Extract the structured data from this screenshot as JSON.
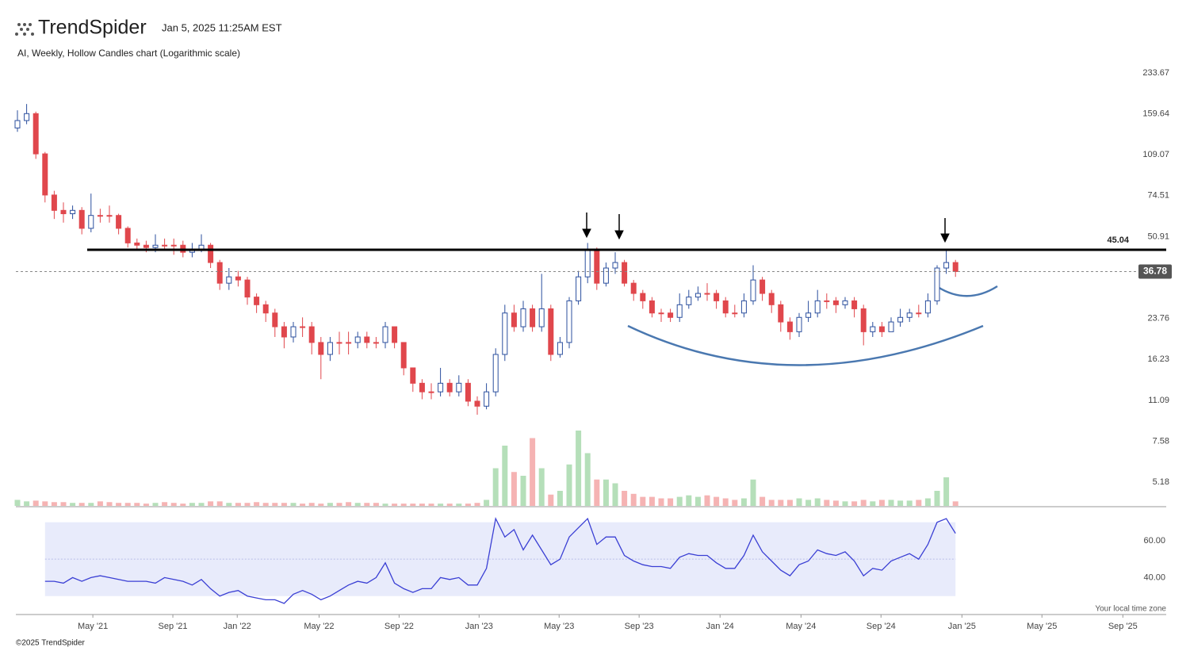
{
  "header": {
    "brand": "TrendSpider",
    "timestamp": "Jan 5, 2025 11:25AM EST",
    "subtitle": "AI, Weekly, Hollow Candles chart (Logarithmic scale)"
  },
  "footer": {
    "copyright": "©2025 TrendSpider",
    "timezone": "Your local time zone"
  },
  "chart_data": [
    {
      "type": "candlestick",
      "log_scale": true,
      "up_color": "#2b4f9e",
      "down_color": "#e0474c",
      "categories": [
        null,
        null,
        null,
        null,
        null,
        null,
        null,
        null,
        null,
        null,
        null,
        null,
        null,
        null,
        null,
        null,
        null,
        null,
        null,
        null,
        null,
        null,
        null,
        null,
        null,
        null,
        null,
        null,
        null,
        null,
        null,
        null,
        null,
        null,
        null,
        null,
        null,
        null,
        null,
        null,
        null,
        null,
        null,
        null,
        null,
        null,
        null,
        null,
        null,
        null,
        null,
        null,
        null,
        null,
        null,
        null,
        null,
        null,
        null,
        null,
        null,
        null,
        null,
        null,
        null,
        null,
        null,
        null,
        null,
        null,
        null,
        null,
        null,
        null,
        null,
        null,
        null,
        null,
        null,
        null,
        null,
        null,
        null,
        null,
        null,
        null,
        null,
        null,
        null,
        null,
        null,
        null,
        null,
        null,
        null,
        null,
        null,
        null,
        null,
        null,
        null,
        null,
        null
      ],
      "open": [
        140,
        150,
        160,
        110,
        75,
        65,
        63,
        65,
        55,
        62,
        62,
        62,
        55,
        48,
        47,
        46,
        47,
        47,
        47,
        44,
        45,
        47,
        40,
        33,
        35,
        34,
        29,
        27,
        25,
        22,
        20,
        22,
        22,
        19,
        17,
        19,
        19,
        19,
        20,
        19,
        19,
        22,
        19,
        15,
        13,
        12,
        12,
        13,
        12,
        13,
        11,
        10.5,
        12,
        17,
        25,
        22,
        26,
        22,
        26,
        17,
        19,
        28,
        35,
        45,
        33,
        38,
        40,
        33,
        30,
        28,
        25,
        25,
        24,
        27,
        29,
        30,
        30,
        28,
        25,
        25,
        28,
        34,
        30,
        27,
        23,
        21,
        24,
        25,
        28,
        28,
        27,
        28,
        26,
        21,
        22,
        21,
        23,
        24,
        25,
        25,
        28,
        38,
        40
      ],
      "high": [
        165,
        175,
        163,
        112,
        78,
        70,
        68,
        67,
        76,
        66,
        68,
        63,
        56,
        50,
        49,
        52,
        50,
        50,
        49,
        48,
        52,
        48,
        41,
        38,
        37,
        35,
        30,
        28,
        26,
        23,
        23,
        24,
        23,
        20,
        20,
        21,
        21,
        21,
        21,
        20,
        23,
        22,
        19,
        15,
        13.5,
        13,
        15,
        13.5,
        14,
        13.5,
        11.5,
        13,
        18,
        27,
        27,
        28,
        27,
        36,
        27,
        20,
        29,
        37,
        48,
        46,
        40,
        44,
        41,
        34,
        31,
        29,
        26,
        26,
        30,
        31,
        32,
        33,
        31,
        29,
        27,
        30,
        39,
        35,
        31,
        28,
        24,
        25,
        28,
        31,
        30,
        29,
        29,
        29,
        27,
        23,
        23,
        24,
        26,
        26,
        27,
        30,
        39,
        45,
        41
      ],
      "low": [
        135,
        145,
        105,
        70,
        60,
        58,
        60,
        52,
        53,
        58,
        58,
        52,
        46,
        45,
        44,
        44,
        45,
        43,
        42,
        42,
        44,
        38,
        31,
        31,
        32,
        27,
        25,
        23,
        20,
        18,
        19,
        20,
        17,
        13.5,
        16,
        17,
        17,
        18,
        18,
        18,
        18,
        18,
        14,
        12,
        11.2,
        11.2,
        11.5,
        11.5,
        11.5,
        10.5,
        9.7,
        10.2,
        11.5,
        16,
        21,
        21,
        21,
        21,
        16,
        16.5,
        18,
        27,
        33,
        31,
        32,
        36,
        32,
        28,
        26,
        24,
        23,
        23,
        23,
        26,
        28,
        28,
        26,
        24,
        24,
        24,
        27,
        28,
        25,
        21,
        19.5,
        20,
        23,
        24,
        26,
        25,
        26,
        24,
        18.5,
        20,
        20,
        21,
        22,
        23,
        24,
        24,
        27,
        36,
        35
      ],
      "close": [
        150,
        160,
        110,
        75,
        65,
        63,
        65,
        55,
        62,
        62,
        62,
        55,
        48,
        47,
        46,
        47,
        47,
        47,
        44,
        45,
        47,
        40,
        33,
        35,
        34,
        29,
        27,
        25,
        22,
        20,
        22,
        22,
        19,
        17,
        19,
        19,
        19,
        20,
        19,
        19,
        22,
        19,
        15,
        13,
        12,
        12,
        13,
        12,
        13,
        11,
        10.5,
        12,
        17,
        25,
        22,
        26,
        22,
        26,
        17,
        19,
        28,
        35,
        45,
        33,
        38,
        40,
        33,
        30,
        28,
        25,
        25,
        24,
        27,
        29,
        30,
        30,
        28,
        25,
        25,
        28,
        34,
        30,
        27,
        23,
        21,
        24,
        25,
        28,
        28,
        27,
        28,
        26,
        21,
        22,
        21,
        23,
        24,
        25,
        25,
        28,
        38,
        40,
        36.78
      ],
      "ylim": [
        4.15,
        255.3
      ],
      "yticks": [
        233.67,
        159.64,
        109.07,
        74.51,
        50.91,
        23.76,
        16.23,
        11.09,
        7.58,
        5.18
      ],
      "xlim": [
        0,
        125
      ],
      "xticks": [
        {
          "value": 8.2,
          "label": "May '21"
        },
        {
          "value": 16.9,
          "label": "Sep '21"
        },
        {
          "value": 23.9,
          "label": "Jan '22"
        },
        {
          "value": 32.8,
          "label": "May '22"
        },
        {
          "value": 41.5,
          "label": "Sep '22"
        },
        {
          "value": 50.2,
          "label": "Jan '23"
        },
        {
          "value": 58.9,
          "label": "May '23"
        },
        {
          "value": 67.6,
          "label": "Sep '23"
        },
        {
          "value": 76.4,
          "label": "Jan '24"
        },
        {
          "value": 85.2,
          "label": "May '24"
        },
        {
          "value": 93.9,
          "label": "Sep '24"
        },
        {
          "value": 102.7,
          "label": "Jan '25"
        },
        {
          "value": 111.4,
          "label": "May '25"
        },
        {
          "value": 120.2,
          "label": "Sep '25"
        }
      ],
      "resistance": 45.04,
      "last_price": 36.78,
      "grid": false
    },
    {
      "type": "bar",
      "up_color": "#b5dfb9",
      "down_color": "#f5b3b3",
      "values": [
        8,
        6,
        7,
        6,
        5,
        5,
        4,
        4,
        4,
        6,
        5,
        4,
        4,
        4,
        3,
        4,
        5,
        4,
        3,
        4,
        4,
        6,
        6,
        4,
        4,
        4,
        5,
        4,
        4,
        4,
        4,
        3,
        4,
        3,
        4,
        4,
        5,
        4,
        4,
        4,
        3,
        3,
        3,
        3,
        3,
        3,
        3,
        3,
        3,
        3,
        4,
        8,
        50,
        80,
        45,
        40,
        90,
        50,
        15,
        20,
        55,
        100,
        70,
        35,
        35,
        30,
        20,
        16,
        12,
        12,
        10,
        10,
        12,
        14,
        12,
        14,
        12,
        10,
        8,
        10,
        35,
        12,
        8,
        8,
        8,
        10,
        8,
        10,
        8,
        7,
        6,
        6,
        8,
        6,
        8,
        8,
        7,
        7,
        8,
        10,
        20,
        38,
        6
      ]
    },
    {
      "type": "line",
      "color": "#3a3fd4",
      "band_color": "#e8ebfb",
      "values": [
        null,
        null,
        null,
        38,
        38,
        37,
        40,
        38,
        40,
        41,
        40,
        39,
        38,
        38,
        38,
        37,
        40,
        39,
        38,
        36,
        39,
        34,
        30,
        32,
        33,
        30,
        29,
        28,
        28,
        26,
        31,
        33,
        31,
        28,
        30,
        33,
        36,
        38,
        37,
        40,
        48,
        37,
        34,
        32,
        34,
        34,
        40,
        39,
        40,
        36,
        36,
        45,
        72,
        62,
        66,
        55,
        63,
        55,
        47,
        50,
        62,
        67,
        72,
        58,
        62,
        62,
        52,
        49,
        47,
        46,
        46,
        45,
        51,
        53,
        52,
        52,
        48,
        45,
        45,
        52,
        63,
        54,
        49,
        44,
        41,
        47,
        49,
        55,
        53,
        52,
        54,
        49,
        41,
        45,
        44,
        49,
        51,
        53,
        50,
        58,
        70,
        72,
        64
      ],
      "ylim": [
        20,
        78
      ],
      "yticks": [
        {
          "value": 60,
          "label": "60.00"
        },
        {
          "value": 40,
          "label": "40.00"
        }
      ],
      "band": [
        30,
        70
      ],
      "midline": 50
    }
  ]
}
